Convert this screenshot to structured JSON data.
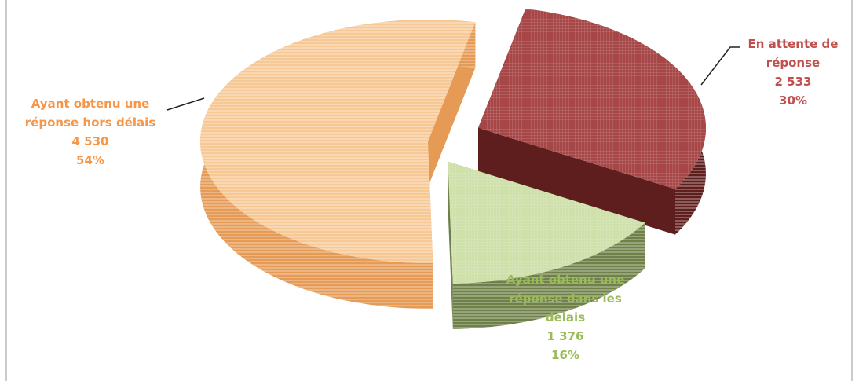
{
  "chart_data": {
    "type": "pie",
    "categories": [
      "En attente de réponse",
      "Ayant obtenu une réponse dans les délais",
      "Ayant obtenu une réponse hors délais"
    ],
    "values": [
      2533,
      1376,
      4530
    ],
    "value_labels": [
      "2 533",
      "1 376",
      "4 530"
    ],
    "percent_labels": [
      "30%",
      "16%",
      "54%"
    ],
    "colors": [
      "#a64646",
      "#cfe0ab",
      "#f6c895"
    ],
    "side_colors": [
      "#5e1e1e",
      "#6f8148",
      "#e59a55"
    ],
    "label_colors": [
      "#c0504d",
      "#9bbb59",
      "#f79646"
    ]
  }
}
